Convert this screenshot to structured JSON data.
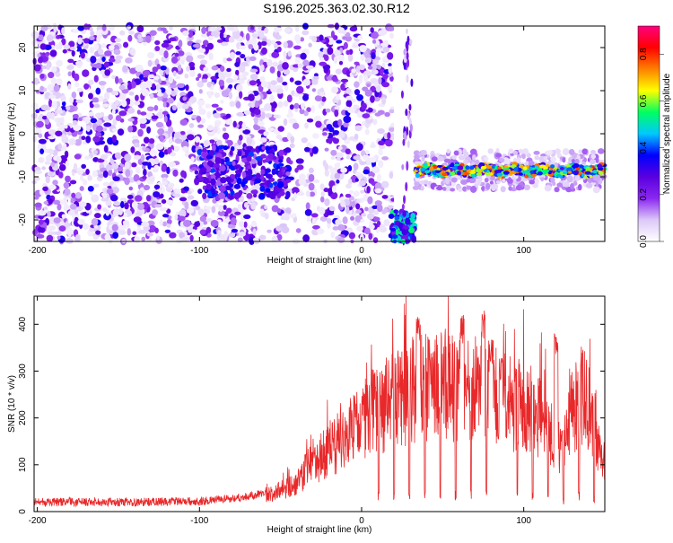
{
  "title": "S196.2025.363.02.30.R12",
  "chart_data": [
    {
      "type": "heatmap",
      "name": "spectrogram",
      "xlabel": "Height of straight line (km)",
      "ylabel": "Frequency (Hz)",
      "xlim": [
        -202,
        150
      ],
      "ylim": [
        -25,
        25
      ],
      "xticks": [
        -200,
        -100,
        0,
        100
      ],
      "yticks": [
        -20,
        -10,
        0,
        10,
        20
      ],
      "colorbar": {
        "label": "Normalized spectral amplitude",
        "range": [
          0.0,
          0.92
        ],
        "ticks": [
          0.0,
          0.2,
          0.4,
          0.6,
          0.8
        ],
        "colormap": [
          "#ffffff",
          "#dcc8f8",
          "#8a28f0",
          "#5a00e0",
          "#0000ff",
          "#00c8ff",
          "#00ff60",
          "#ffff00",
          "#ff8000",
          "#ff0000",
          "#ff0080"
        ]
      },
      "regions": [
        {
          "x_range": [
            -202,
            20
          ],
          "kind": "broadband noise",
          "amplitude_typical": 0.1
        },
        {
          "x_range": [
            -100,
            -45
          ],
          "kind": "enhanced patch",
          "y_range": [
            -15,
            -3
          ],
          "amplitude_typical": 0.25
        },
        {
          "x_range": [
            18,
            33
          ],
          "kind": "low-frequency burst",
          "y_range": [
            -25,
            -18
          ],
          "amplitude_typical": 0.45
        },
        {
          "x_range": [
            33,
            150
          ],
          "kind": "carrier line",
          "frequency_hz": -8.5,
          "amplitude_typical": 0.6
        }
      ]
    },
    {
      "type": "line",
      "name": "snr",
      "xlabel": "Height of straight line (km)",
      "ylabel": "SNR (10 * v/v)",
      "xlim": [
        -202,
        150
      ],
      "ylim": [
        0,
        460
      ],
      "xticks": [
        -200,
        -100,
        0,
        100
      ],
      "yticks": [
        0,
        100,
        200,
        300,
        400
      ],
      "color": "#e8282a",
      "series": [
        {
          "x": [
            -202,
            -190,
            -180,
            -170,
            -160,
            -150,
            -140,
            -130,
            -120,
            -110,
            -100,
            -90,
            -80,
            -70,
            -60,
            -50,
            -40,
            -35,
            -30,
            -25,
            -20,
            -15,
            -10,
            -5,
            0,
            5,
            10,
            15,
            20,
            25,
            30,
            35,
            40,
            45,
            50,
            55,
            60,
            65,
            70,
            75,
            80,
            85,
            90,
            95,
            100,
            105,
            110,
            115,
            120,
            125,
            130,
            135,
            140,
            145,
            150
          ],
          "values": [
            20,
            20,
            21,
            20,
            21,
            20,
            20,
            21,
            21,
            22,
            22,
            25,
            28,
            32,
            40,
            55,
            70,
            100,
            130,
            140,
            160,
            180,
            190,
            210,
            230,
            250,
            270,
            280,
            290,
            300,
            320,
            310,
            330,
            320,
            330,
            320,
            310,
            320,
            330,
            320,
            310,
            290,
            280,
            270,
            270,
            260,
            240,
            220,
            180,
            150,
            270,
            300,
            280,
            200,
            130
          ],
          "peaks": [
            35,
            62,
            75,
            80,
            86,
            120
          ],
          "peak_values": [
            420,
            420,
            430,
            370,
            330,
            390
          ]
        }
      ]
    }
  ]
}
